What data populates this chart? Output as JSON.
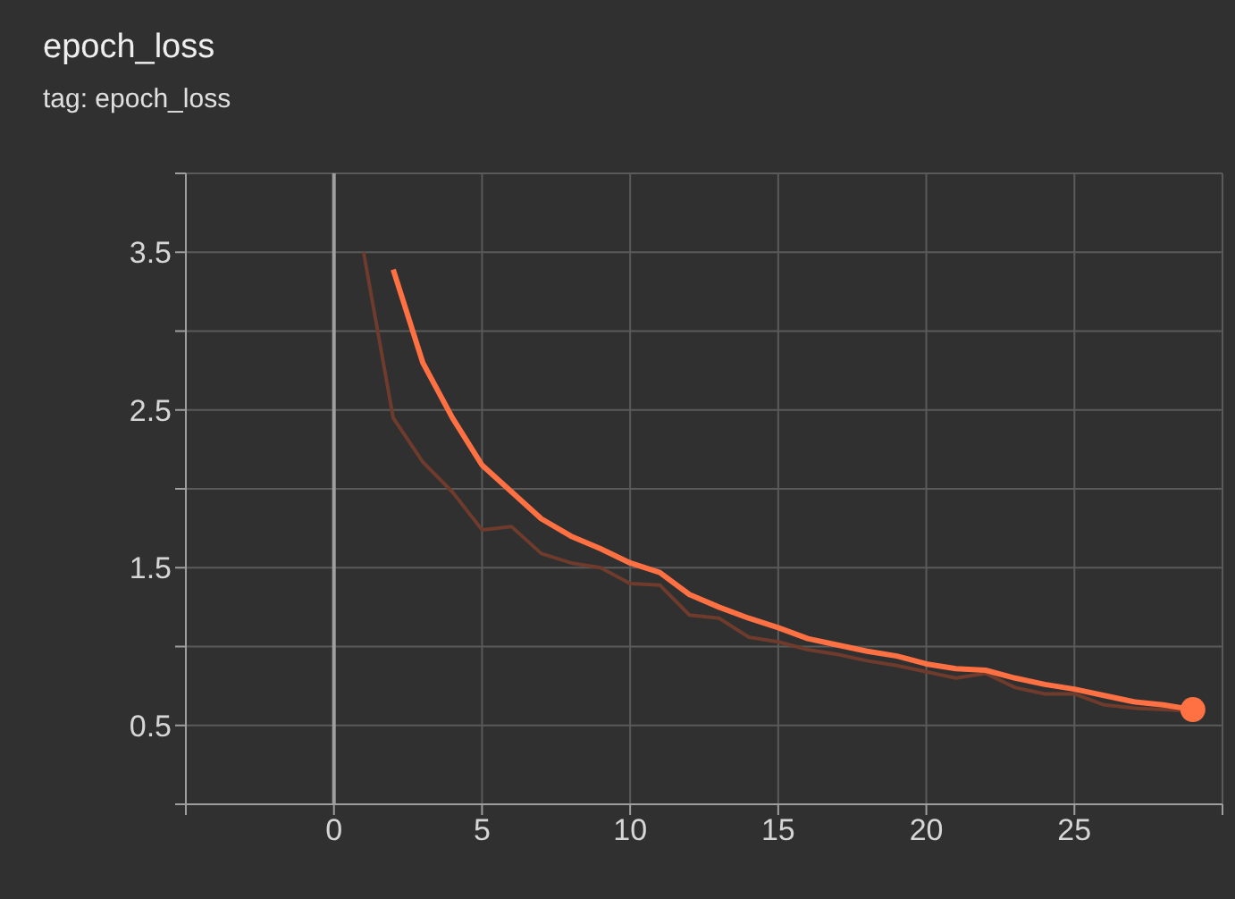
{
  "chart_data": {
    "type": "line",
    "title": "epoch_loss",
    "subtitle": "tag: epoch_loss",
    "x": [
      1,
      2,
      3,
      4,
      5,
      6,
      7,
      8,
      9,
      10,
      11,
      12,
      13,
      14,
      15,
      16,
      17,
      18,
      19,
      20,
      21,
      22,
      23,
      24,
      25,
      26,
      27,
      28,
      29
    ],
    "series": [
      {
        "color": "#6e3b2c",
        "values": [
          3.5,
          2.45,
          2.17,
          1.98,
          1.74,
          1.76,
          1.59,
          1.53,
          1.5,
          1.4,
          1.39,
          1.2,
          1.18,
          1.06,
          1.03,
          0.98,
          0.95,
          0.91,
          0.88,
          0.84,
          0.8,
          0.83,
          0.74,
          0.7,
          0.7,
          0.63,
          0.61,
          0.6,
          0.59
        ]
      },
      {
        "color": "#ff7043",
        "values": [
          null,
          3.39,
          2.8,
          2.45,
          2.15,
          1.98,
          1.81,
          1.7,
          1.62,
          1.53,
          1.47,
          1.33,
          1.25,
          1.18,
          1.12,
          1.05,
          1.01,
          0.97,
          0.94,
          0.89,
          0.86,
          0.85,
          0.8,
          0.76,
          0.73,
          0.69,
          0.65,
          0.63,
          0.6
        ]
      },
      {
        "type": "scatter",
        "color": "#ff7043",
        "marker": "circle",
        "x": [
          29
        ],
        "values": [
          0.6
        ]
      }
    ],
    "xlim": [
      -5,
      30
    ],
    "xticks": [
      {
        "value": -5,
        "label": null
      },
      0,
      5,
      10,
      15,
      20,
      25,
      {
        "value": 30,
        "label": null
      }
    ],
    "ylim": [
      0,
      4
    ],
    "yticks": [
      {
        "value": 0,
        "label": null
      },
      0.5,
      {
        "value": 1,
        "label": null
      },
      1.5,
      {
        "value": 2,
        "label": null
      },
      2.5,
      {
        "value": 3,
        "label": null
      },
      3.5,
      {
        "value": 4,
        "label": null
      }
    ],
    "ref_lines": [
      {
        "axis": "x",
        "value": 0,
        "color": "#9e9e9e"
      }
    ],
    "grid": true
  }
}
